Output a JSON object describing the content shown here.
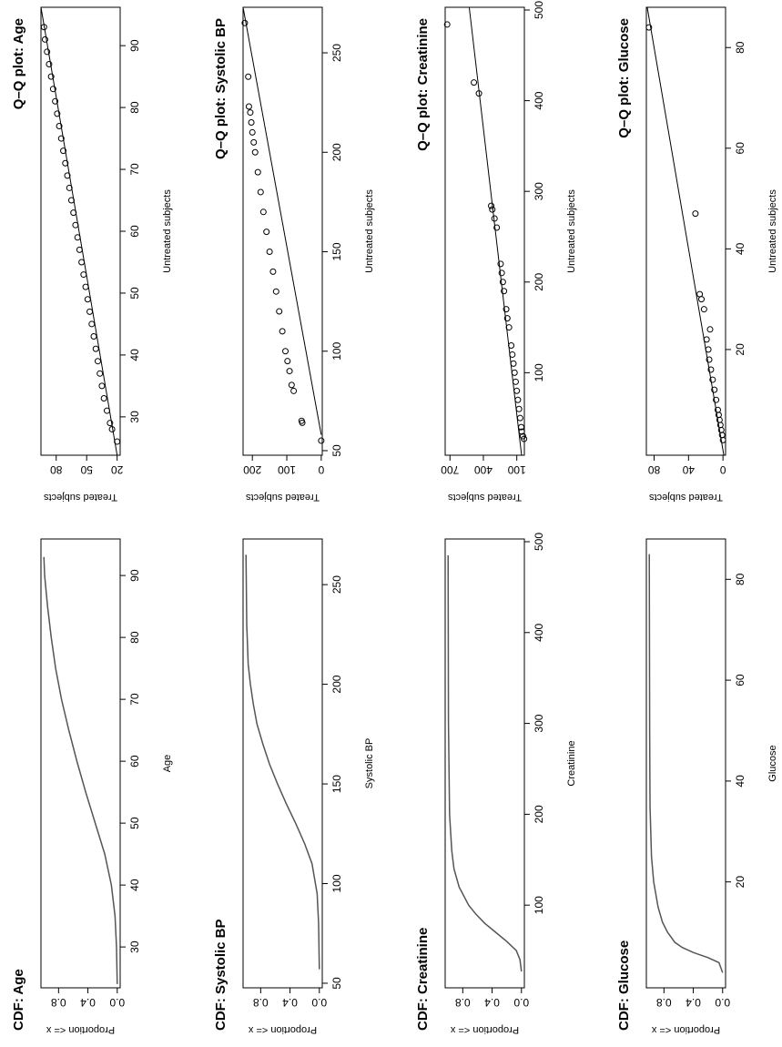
{
  "chart_data": [
    {
      "type": "line",
      "title": "CDF: Age",
      "x_label": "Age",
      "y_label": "Proportion <= x",
      "color": "#555555",
      "x": [
        24,
        30,
        35,
        40,
        45,
        50,
        55,
        60,
        65,
        70,
        75,
        80,
        85,
        90,
        93
      ],
      "values": [
        0,
        0.01,
        0.03,
        0.08,
        0.17,
        0.3,
        0.43,
        0.55,
        0.66,
        0.76,
        0.84,
        0.9,
        0.95,
        0.99,
        1
      ],
      "xlim": [
        23.4,
        95.9
      ],
      "xticks": [
        30,
        40,
        50,
        60,
        70,
        80,
        90
      ],
      "ylim": [
        -0.04,
        1.04
      ],
      "yticks": [
        {
          "value": 0,
          "label": "0.0"
        },
        {
          "value": 0.4,
          "label": "0.4"
        },
        {
          "value": 0.8,
          "label": "0.8"
        }
      ]
    },
    {
      "type": "scatter",
      "title": "Q–Q plot: Age",
      "x_label": "Untreated subjects",
      "y_label": "Treated subjects",
      "color": "#000000",
      "x": [
        26,
        28,
        29,
        31,
        33,
        35,
        37,
        39,
        41,
        43,
        45,
        47,
        49,
        51,
        53,
        55,
        57,
        59,
        61,
        63,
        65,
        67,
        69,
        71,
        73,
        75,
        77,
        79,
        81,
        83,
        85,
        87,
        89,
        91,
        93
      ],
      "values": [
        20,
        25,
        27,
        30,
        33,
        35,
        37,
        39,
        41,
        43,
        45,
        47,
        49,
        51,
        53,
        55,
        57,
        59,
        61,
        63,
        65,
        67,
        69,
        71,
        73,
        75,
        77,
        79,
        81,
        83,
        85,
        87,
        89,
        91,
        92
      ],
      "fit_line": {
        "x": [
          23.8,
          96.2
        ],
        "y": [
          20,
          95
        ]
      },
      "xlim": [
        23.8,
        96.2
      ],
      "xticks": [
        30,
        40,
        50,
        60,
        70,
        80,
        90
      ],
      "ylim": [
        17,
        95
      ],
      "yticks": [
        20,
        50,
        80
      ]
    },
    {
      "type": "line",
      "title": "CDF: Systolic BP",
      "x_label": "Systolic BP",
      "y_label": "Proportion <= x",
      "color": "#555555",
      "x": [
        57,
        80,
        95,
        110,
        120,
        130,
        140,
        150,
        160,
        170,
        180,
        190,
        200,
        210,
        230,
        265
      ],
      "values": [
        0,
        0.01,
        0.03,
        0.1,
        0.2,
        0.32,
        0.45,
        0.57,
        0.68,
        0.77,
        0.85,
        0.9,
        0.94,
        0.97,
        0.99,
        1
      ],
      "xlim": [
        47.7,
        272.9
      ],
      "xticks": [
        50,
        100,
        150,
        200,
        250
      ],
      "ylim": [
        -0.04,
        1.04
      ],
      "yticks": [
        {
          "value": 0,
          "label": "0.0"
        },
        {
          "value": 0.4,
          "label": "0.4"
        },
        {
          "value": 0.8,
          "label": "0.8"
        }
      ]
    },
    {
      "type": "scatter",
      "title": "Q–Q plot: Systolic BP",
      "x_label": "Untreated subjects",
      "y_label": "Treated subjects",
      "color": "#000000",
      "x": [
        55,
        64,
        65,
        80,
        83,
        90,
        95,
        100,
        110,
        120,
        130,
        140,
        150,
        160,
        170,
        180,
        190,
        200,
        205,
        210,
        215,
        220,
        223,
        238,
        265
      ],
      "values": [
        0,
        55,
        57,
        80,
        86,
        92,
        98,
        104,
        113,
        122,
        131,
        140,
        150,
        159,
        168,
        176,
        184,
        192,
        196,
        200,
        203,
        206,
        210,
        212,
        222
      ],
      "fit_line": {
        "x": [
          58,
          272.9
        ],
        "y": [
          0,
          227
        ]
      },
      "xlim": [
        47.7,
        272.9
      ],
      "xticks": [
        50,
        100,
        150,
        200,
        250
      ],
      "ylim": [
        -3,
        227
      ],
      "yticks": [
        0,
        100,
        200
      ]
    },
    {
      "type": "line",
      "title": "CDF: Creatinine",
      "x_label": "Creatinine",
      "y_label": "Proportion <= x",
      "color": "#555555",
      "x": [
        27,
        40,
        50,
        60,
        70,
        80,
        90,
        100,
        120,
        140,
        160,
        200,
        300,
        485
      ],
      "values": [
        0,
        0.02,
        0.07,
        0.2,
        0.35,
        0.5,
        0.62,
        0.72,
        0.85,
        0.92,
        0.95,
        0.98,
        0.995,
        1
      ],
      "xlim": [
        9,
        503
      ],
      "xticks": [
        100,
        200,
        300,
        400,
        500
      ],
      "ylim": [
        -0.04,
        1.04
      ],
      "yticks": [
        {
          "value": 0,
          "label": "0.0"
        },
        {
          "value": 0.4,
          "label": "0.4"
        },
        {
          "value": 0.8,
          "label": "0.8"
        }
      ]
    },
    {
      "type": "scatter",
      "title": "Q–Q plot: Creatinine",
      "x_label": "Untreated subjects",
      "y_label": "Treated subjects",
      "color": "#000000",
      "x": [
        27,
        30,
        35,
        40,
        50,
        60,
        70,
        80,
        90,
        100,
        110,
        120,
        130,
        150,
        160,
        170,
        190,
        200,
        210,
        220,
        260,
        270,
        280,
        284,
        408,
        420,
        484
      ],
      "values": [
        35,
        45,
        55,
        60,
        70,
        80,
        90,
        100,
        110,
        120,
        130,
        140,
        150,
        170,
        185,
        195,
        215,
        225,
        235,
        245,
        280,
        300,
        320,
        330,
        440,
        485,
        725
      ],
      "fit_line": {
        "x": [
          9,
          503
        ],
        "y": [
          57,
          527
        ]
      },
      "xlim": [
        9,
        503
      ],
      "xticks": [
        100,
        200,
        300,
        400,
        500
      ],
      "ylim": [
        32,
        743
      ],
      "yticks": [
        100,
        400,
        700
      ]
    },
    {
      "type": "line",
      "title": "CDF: Glucose",
      "x_label": "Glucose",
      "y_label": "Proportion <= x",
      "color": "#555555",
      "x": [
        2,
        4,
        5,
        6,
        7,
        8,
        10,
        12,
        15,
        20,
        25,
        35,
        50,
        85
      ],
      "values": [
        0,
        0.05,
        0.2,
        0.4,
        0.55,
        0.65,
        0.75,
        0.82,
        0.88,
        0.94,
        0.97,
        0.99,
        0.995,
        1
      ],
      "xlim": [
        -1,
        88
      ],
      "xticks": [
        20,
        40,
        60,
        80
      ],
      "ylim": [
        -0.04,
        1.04
      ],
      "yticks": [
        {
          "value": 0,
          "label": "0.0"
        },
        {
          "value": 0.4,
          "label": "0.4"
        },
        {
          "value": 0.8,
          "label": "0.8"
        }
      ]
    },
    {
      "type": "scatter",
      "title": "Q–Q plot: Glucose",
      "x_label": "Untreated subjects",
      "y_label": "Treated subjects",
      "color": "#000000",
      "x": [
        2,
        3,
        4,
        5,
        6,
        7,
        8,
        10,
        12,
        14,
        16,
        18,
        20,
        22,
        24,
        28,
        30,
        31,
        47,
        84
      ],
      "values": [
        0,
        1,
        2,
        3,
        4,
        5,
        6,
        8,
        10,
        12,
        14,
        16,
        17,
        19,
        15,
        22,
        25,
        27,
        32,
        86
      ],
      "fit_line": {
        "x": [
          -1,
          88
        ],
        "y": [
          -1,
          88
        ]
      },
      "xlim": [
        -1,
        88
      ],
      "xticks": [
        20,
        40,
        60,
        80
      ],
      "ylim": [
        -3,
        89
      ],
      "yticks": [
        0,
        40,
        80
      ]
    }
  ]
}
